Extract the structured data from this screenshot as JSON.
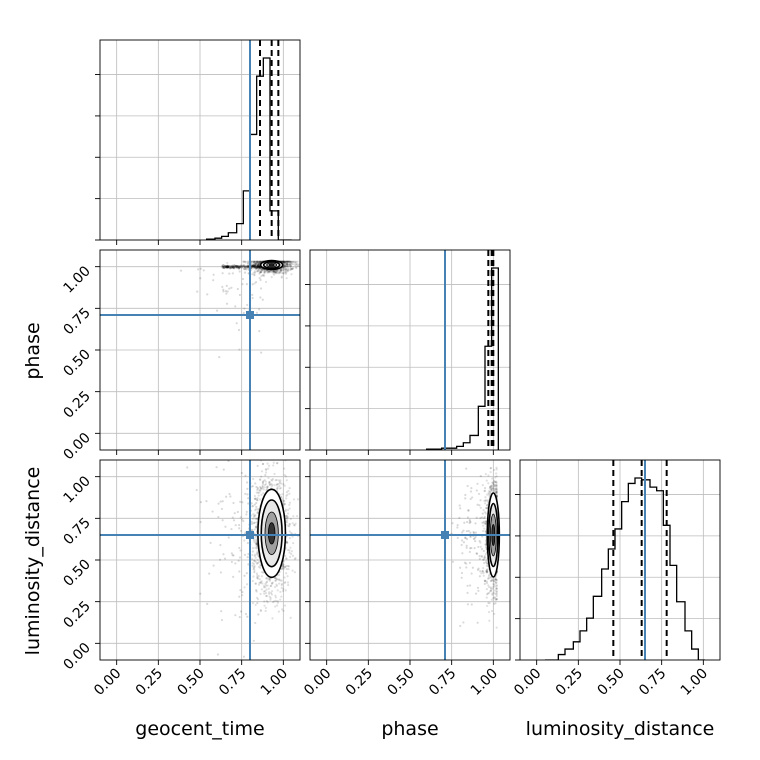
{
  "chart_data": {
    "type": "corner",
    "parameters": [
      "geocent_time",
      "phase",
      "luminosity_distance"
    ],
    "axis_range": [
      -0.1,
      1.1
    ],
    "tick_values": [
      0.0,
      0.25,
      0.5,
      0.75,
      1.0
    ],
    "tick_labels": [
      "0.00",
      "0.25",
      "0.50",
      "0.75",
      "1.00"
    ],
    "truths": {
      "geocent_time": 0.8,
      "phase": 0.71,
      "luminosity_distance": 0.65
    },
    "quantiles": {
      "geocent_time": [
        0.86,
        0.93,
        0.97
      ],
      "phase": [
        0.97,
        0.99,
        1.0
      ],
      "luminosity_distance": [
        0.46,
        0.63,
        0.78
      ]
    },
    "histograms": {
      "geocent_time": {
        "edges": [
          0.54,
          0.59,
          0.63,
          0.67,
          0.72,
          0.76,
          0.8,
          0.84,
          0.88,
          0.92,
          0.97,
          1.01,
          1.05
        ],
        "counts": [
          0.005,
          0.01,
          0.02,
          0.04,
          0.09,
          0.27,
          0.58,
          0.9,
          1.0,
          0.16,
          0.0,
          0.0
        ]
      },
      "phase": {
        "edges": [
          0.6,
          0.64,
          0.69,
          0.73,
          0.78,
          0.82,
          0.86,
          0.91,
          0.95,
          0.99,
          1.03
        ],
        "counts": [
          0.005,
          0.005,
          0.01,
          0.01,
          0.02,
          0.04,
          0.08,
          0.24,
          0.57,
          1.0
        ]
      },
      "luminosity_distance": {
        "edges": [
          0.05,
          0.13,
          0.17,
          0.22,
          0.26,
          0.3,
          0.34,
          0.39,
          0.43,
          0.47,
          0.51,
          0.55,
          0.59,
          0.63,
          0.68,
          0.72,
          0.76,
          0.8,
          0.84,
          0.89,
          0.93,
          0.97,
          1.01
        ],
        "counts": [
          0.0,
          0.03,
          0.06,
          0.1,
          0.16,
          0.23,
          0.35,
          0.5,
          0.61,
          0.72,
          0.87,
          0.97,
          1.0,
          0.99,
          0.95,
          0.93,
          0.74,
          0.52,
          0.32,
          0.16,
          0.06,
          0.0
        ]
      }
    },
    "contours_2d": {
      "phase_vs_geocent_time": {
        "center": [
          0.93,
          1.01
        ],
        "spread": [
          0.03,
          0.012
        ],
        "levels": [
          {
            "scale": 2.2,
            "fill": "#ffffff"
          },
          {
            "scale": 1.6,
            "fill": "#e8e8e8"
          },
          {
            "scale": 1.0,
            "fill": "#a0a0a0"
          },
          {
            "scale": 0.5,
            "fill": "#333333"
          }
        ],
        "tail": {
          "from": [
            0.63,
            1.0
          ],
          "to": [
            0.88,
            1.0
          ]
        }
      },
      "luminosity_distance_vs_geocent_time": {
        "center": [
          0.93,
          0.66
        ],
        "spread": [
          0.025,
          0.08
        ],
        "levels": [
          {
            "scale": 3.3,
            "fill": "#ffffff"
          },
          {
            "scale": 2.5,
            "fill": "#e8e8e8"
          },
          {
            "scale": 1.6,
            "fill": "#a0a0a0"
          },
          {
            "scale": 0.8,
            "fill": "#333333"
          }
        ]
      },
      "luminosity_distance_vs_phase": {
        "center": [
          1.0,
          0.65
        ],
        "spread": [
          0.01,
          0.07
        ],
        "levels": [
          {
            "scale": 3.6,
            "fill": "#ffffff"
          },
          {
            "scale": 2.7,
            "fill": "#e8e8e8"
          },
          {
            "scale": 1.8,
            "fill": "#a0a0a0"
          },
          {
            "scale": 0.9,
            "fill": "#333333"
          }
        ]
      }
    },
    "grid": true,
    "colors": {
      "truth": "#4682b4",
      "histogram": "#000000",
      "quantile": "#000000",
      "grid": "#bdbdbd",
      "scatter": "#000000"
    }
  }
}
